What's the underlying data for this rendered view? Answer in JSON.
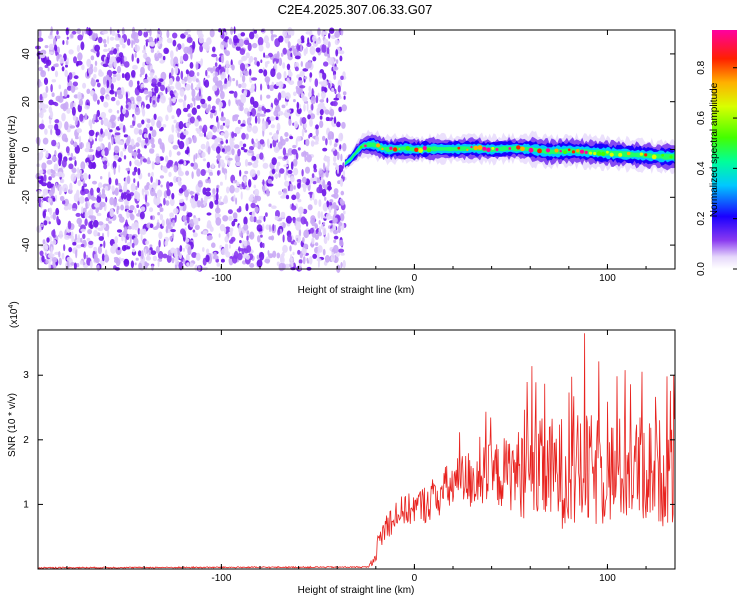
{
  "page_title": "C2E4.2025.307.06.33.G07",
  "colors": {
    "snr_line": "#e8231f",
    "speckle_strong": "#6b12e8",
    "speckle_mid": "#8a3af0",
    "speckle_weak": "#c9a8f5",
    "speckle_faint": "#e6d8fb"
  },
  "chart_data": [
    {
      "type": "heatmap",
      "title": "C2E4.2025.307.06.33.G07",
      "xlabel": "Height of straight line (km)",
      "ylabel": "Frequency (Hz)",
      "xlim": [
        -195,
        135
      ],
      "ylim": [
        -50,
        50
      ],
      "xticks": [
        -100,
        0,
        100
      ],
      "yticks": [
        -40,
        -20,
        0,
        20,
        40
      ],
      "noise_region_x": [
        -195,
        -36
      ],
      "ridge": {
        "x": [
          -36,
          -33,
          -30,
          -27,
          -24,
          -21,
          -18,
          -14,
          -10,
          -5,
          0,
          10,
          20,
          30,
          40,
          50,
          60,
          70,
          80,
          90,
          100,
          110,
          120,
          130,
          135
        ],
        "y": [
          -6,
          -4,
          -1,
          1.5,
          2,
          2,
          1,
          0,
          0.2,
          0.5,
          0,
          0.3,
          0.2,
          0.5,
          0,
          0.5,
          0.2,
          -1,
          -0.5,
          -1,
          -1.5,
          -2,
          -2.5,
          -3,
          -3
        ]
      },
      "colorbar": {
        "label": "Normalized spectral amplitude",
        "range": [
          0,
          0.95
        ],
        "ticks": [
          "0.0",
          "0.2",
          "0.4",
          "0.6",
          "0.8"
        ],
        "tick_values": [
          0,
          0.2,
          0.4,
          0.6,
          0.8
        ]
      }
    },
    {
      "type": "line",
      "xlabel": "Height of straight line (km)",
      "ylabel": "SNR (10 * v/v)",
      "y_multiplier_base": "(x10",
      "y_multiplier_exp": "4",
      "y_multiplier_close": ")",
      "xlim": [
        -195,
        135
      ],
      "ylim": [
        0,
        3.7
      ],
      "xticks": [
        -100,
        0,
        100
      ],
      "yticks": [
        1,
        2,
        3
      ],
      "envelope": {
        "x": [
          -195,
          -24,
          -21,
          -18,
          -15,
          -10,
          -5,
          0,
          5,
          10,
          20,
          30,
          40,
          50,
          60,
          70,
          80,
          90,
          100,
          110,
          120,
          130,
          135
        ],
        "mean": [
          0.02,
          0.03,
          0.15,
          0.45,
          0.65,
          0.85,
          0.9,
          0.95,
          1.0,
          1.1,
          1.3,
          1.4,
          1.45,
          1.5,
          1.5,
          1.5,
          1.5,
          1.5,
          1.5,
          1.55,
          1.55,
          1.5,
          1.5
        ],
        "spread": [
          0.01,
          0.01,
          0.08,
          0.2,
          0.25,
          0.25,
          0.25,
          0.25,
          0.3,
          0.35,
          0.4,
          0.5,
          0.5,
          0.6,
          0.8,
          0.85,
          0.9,
          0.9,
          0.85,
          0.85,
          0.85,
          0.85,
          0.85
        ]
      },
      "peak": {
        "x": 88,
        "y": 3.65
      }
    }
  ]
}
